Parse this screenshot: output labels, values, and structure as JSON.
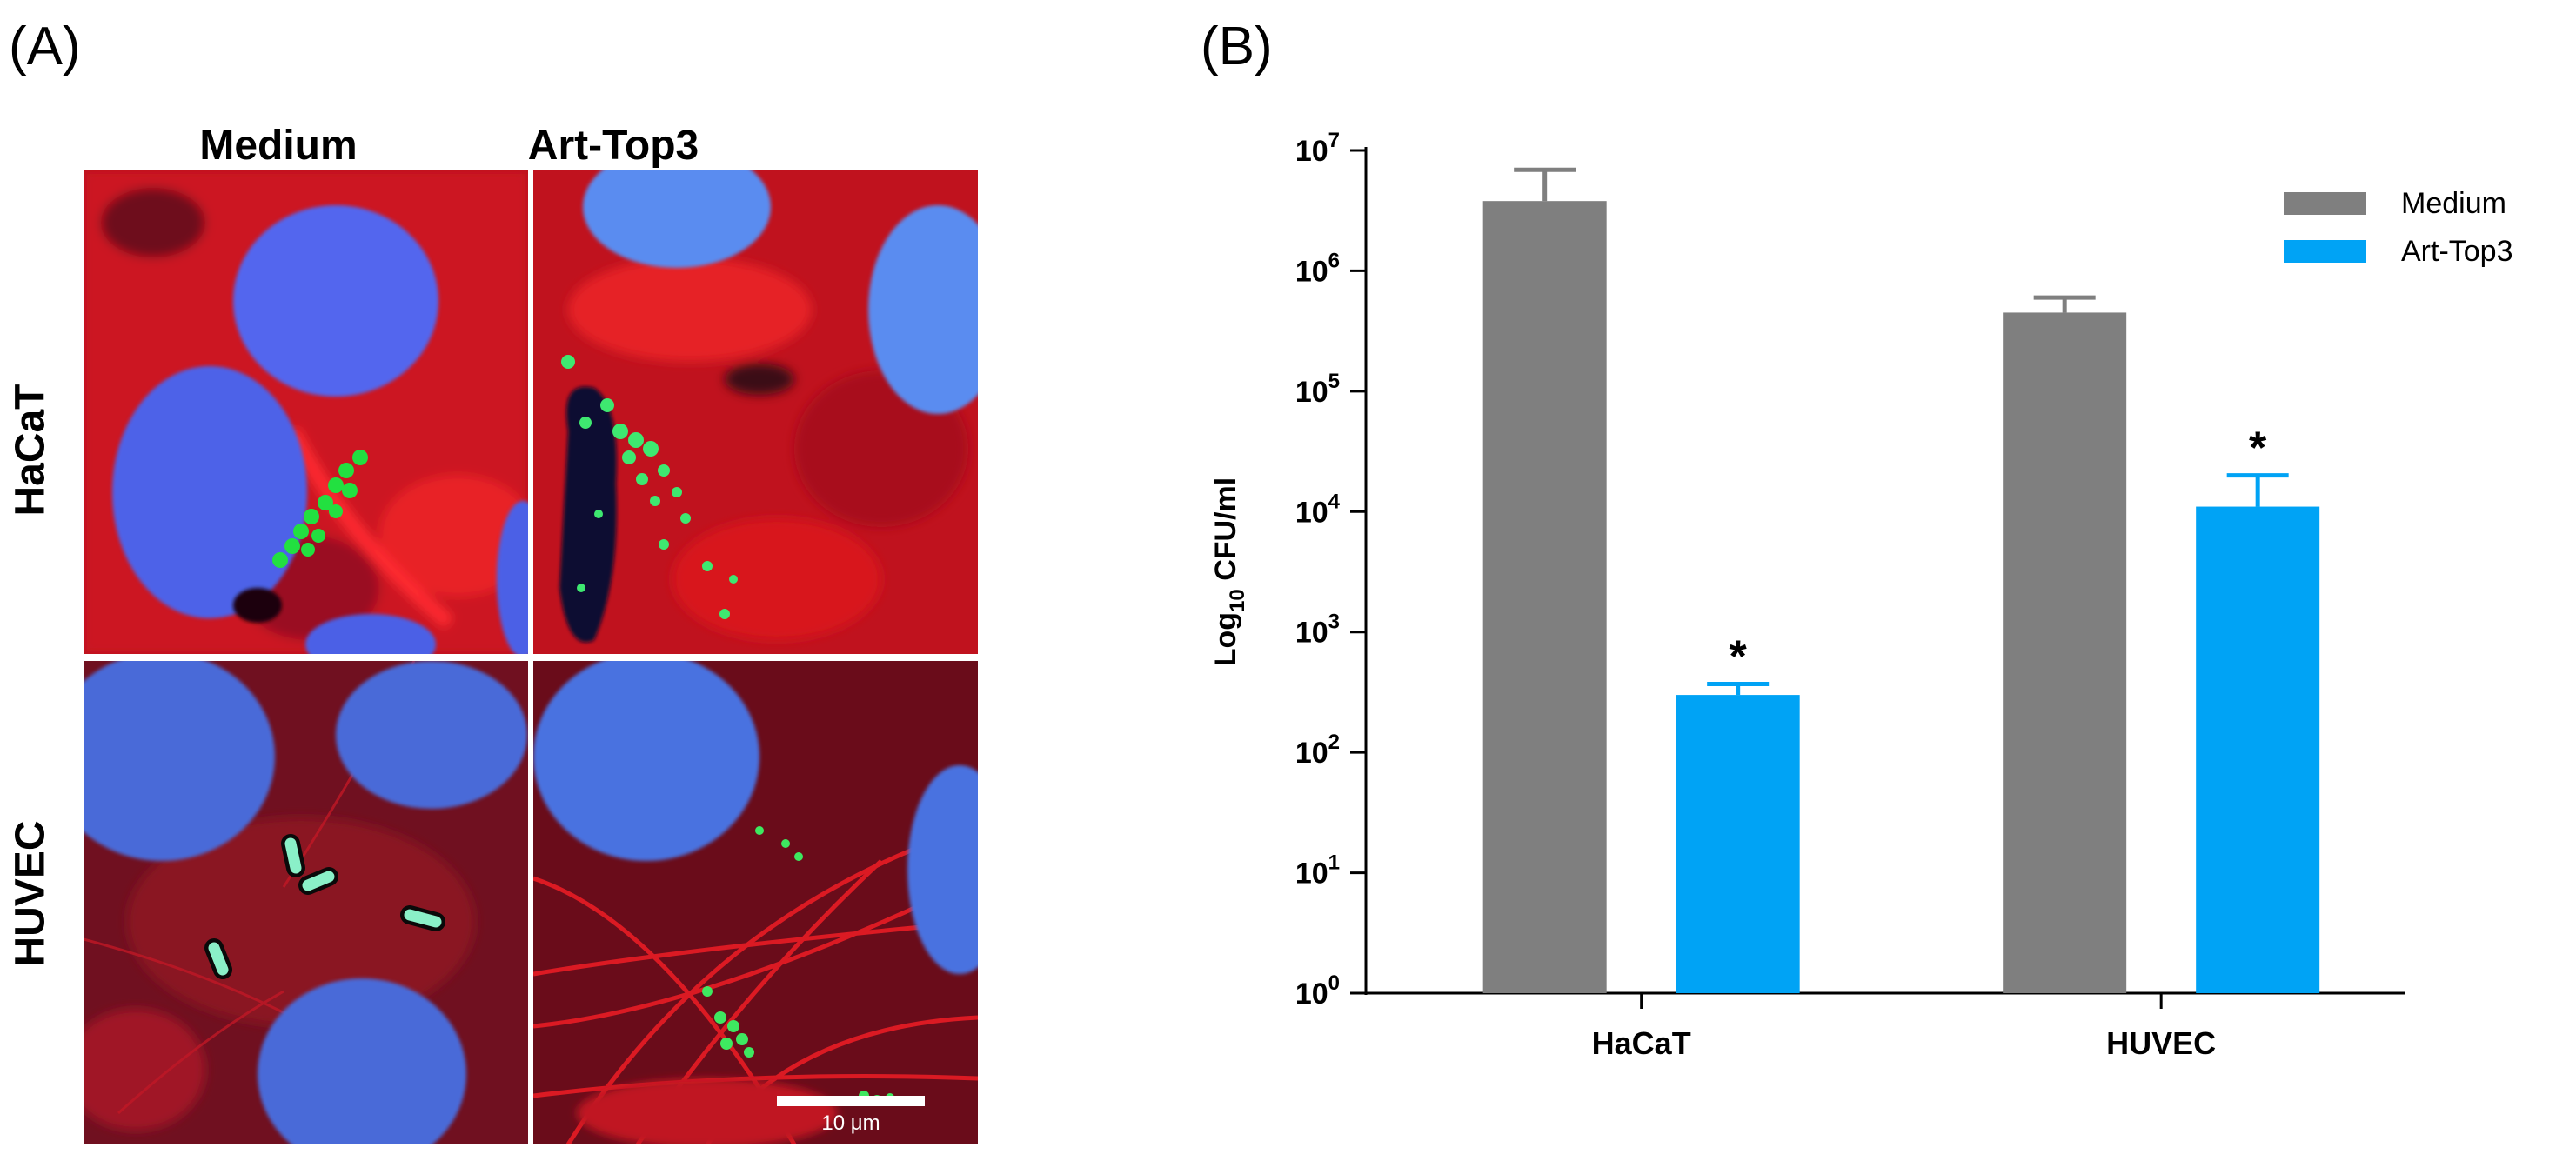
{
  "panel_a": {
    "letter": "(A)",
    "columns": [
      "Medium",
      "Art-Top3"
    ],
    "rows": [
      "HaCaT",
      "HUVEC"
    ],
    "scale_bar_label": "10 μm",
    "colors": {
      "actin": "#e0101a",
      "nucleus": "#3f62e6",
      "bacteria": "#22e040"
    }
  },
  "panel_b": {
    "letter": "(B)"
  },
  "chart_data": {
    "type": "bar",
    "categories": [
      "HaCaT",
      "HUVEC"
    ],
    "series": [
      {
        "name": "Medium",
        "color": "#7f7f7f",
        "values": [
          3800000,
          450000
        ],
        "error_upper": [
          6900000,
          600000
        ]
      },
      {
        "name": "Art-Top3",
        "color": "#00a3f5",
        "values": [
          300,
          11000
        ],
        "error_upper": [
          370,
          20000
        ]
      }
    ],
    "ylabel_base": "Log",
    "ylabel_sub": "10",
    "ylabel_rest": " CFU/ml",
    "yscale": "log",
    "ylim": [
      1,
      10000000
    ],
    "yticks": [
      {
        "base": "10",
        "exp": "0",
        "value": 1
      },
      {
        "base": "10",
        "exp": "1",
        "value": 10
      },
      {
        "base": "10",
        "exp": "2",
        "value": 100
      },
      {
        "base": "10",
        "exp": "3",
        "value": 1000
      },
      {
        "base": "10",
        "exp": "4",
        "value": 10000
      },
      {
        "base": "10",
        "exp": "5",
        "value": 100000
      },
      {
        "base": "10",
        "exp": "6",
        "value": 1000000
      },
      {
        "base": "10",
        "exp": "7",
        "value": 10000000
      }
    ],
    "annotations": [
      {
        "text": "*",
        "category": "HaCaT",
        "series": "Art-Top3"
      },
      {
        "text": "*",
        "category": "HUVEC",
        "series": "Art-Top3"
      }
    ],
    "legend_position": "top-right",
    "grid": false
  }
}
